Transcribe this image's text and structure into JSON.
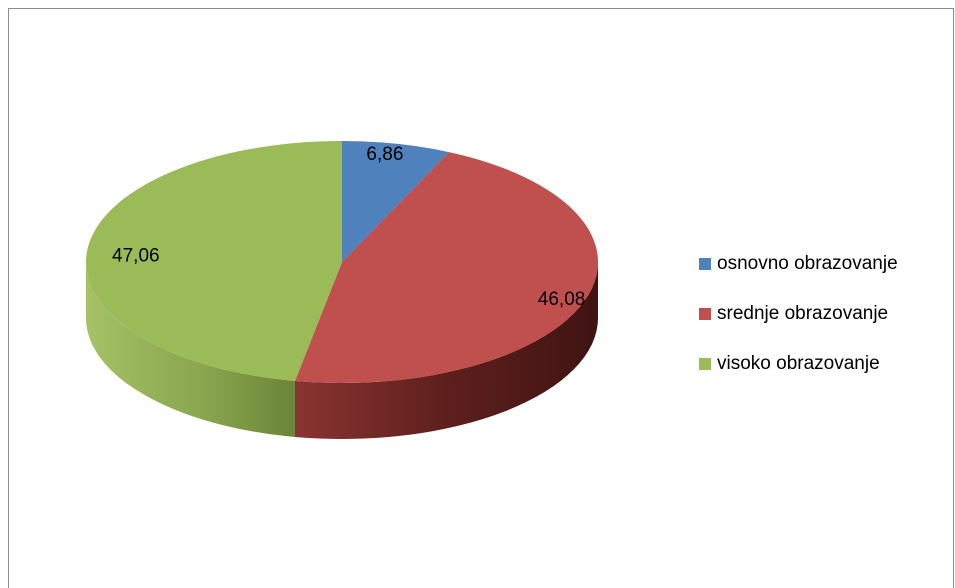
{
  "chart_data": {
    "type": "pie",
    "title": "",
    "slices": [
      {
        "name": "osnovno obrazovanje",
        "value": 6.86,
        "label": "6,86",
        "color": "#4f81bd",
        "side_color": "#3a6090"
      },
      {
        "name": "srednje obrazovanje",
        "value": 46.08,
        "label": "46,08",
        "color": "#c0504d",
        "side_color": "#6e2220"
      },
      {
        "name": "visoko obrazovanje",
        "value": 47.06,
        "label": "47,06",
        "color": "#9bbb59",
        "side_color": "#6f8a3d"
      }
    ],
    "legend_position": "right",
    "style": "3d"
  },
  "legend": {
    "items": [
      {
        "label": "osnovno obrazovanje",
        "color": "#4f81bd"
      },
      {
        "label": "srednje obrazovanje",
        "color": "#c0504d"
      },
      {
        "label": "visoko obrazovanje",
        "color": "#9bbb59"
      }
    ]
  }
}
